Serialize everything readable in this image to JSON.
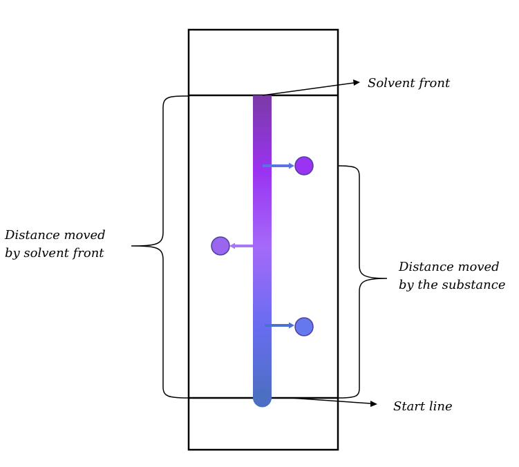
{
  "labels": {
    "solvent_front": "Solvent front",
    "start_line": "Start line",
    "distance_solvent_line1": "Distance moved",
    "distance_solvent_line2": "by solvent front",
    "distance_substance_line1": "Distance moved",
    "distance_substance_line2": "by the substance"
  },
  "colors": {
    "outline": "#000000",
    "strip_top": "#7a3aa6",
    "strip_upper": "#9a33f2",
    "strip_middle": "#a46af8",
    "strip_lower": "#6a6cf2",
    "strip_bottom": "#4b6fc2",
    "spot_top": "#9a33f2",
    "spot_middle": "#9a66ee",
    "spot_bottom": "#6678ee",
    "arrow_top": "#5a74e6",
    "arrow_middle": "#a777f7",
    "arrow_bottom": "#4d6fcf"
  }
}
